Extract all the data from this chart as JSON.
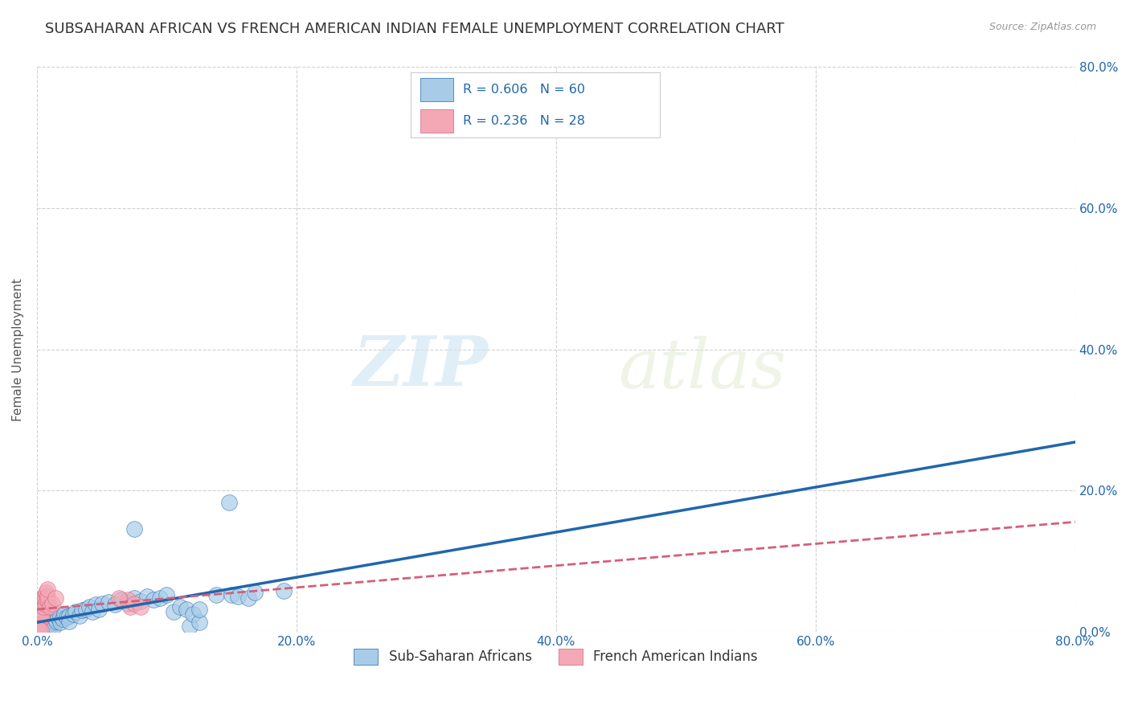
{
  "title": "SUBSAHARAN AFRICAN VS FRENCH AMERICAN INDIAN FEMALE UNEMPLOYMENT CORRELATION CHART",
  "source": "Source: ZipAtlas.com",
  "xlabel_blue": "Sub-Saharan Africans",
  "xlabel_pink": "French American Indians",
  "ylabel": "Female Unemployment",
  "xlim": [
    0.0,
    0.8
  ],
  "ylim": [
    0.0,
    0.8
  ],
  "xticks": [
    0.0,
    0.2,
    0.4,
    0.6,
    0.8
  ],
  "yticks": [
    0.0,
    0.2,
    0.4,
    0.6,
    0.8
  ],
  "tick_labels": [
    "0.0%",
    "20.0%",
    "40.0%",
    "60.0%",
    "80.0%"
  ],
  "blue_R": 0.606,
  "blue_N": 60,
  "pink_R": 0.236,
  "pink_N": 28,
  "blue_color": "#a8cce8",
  "pink_color": "#f4a7b5",
  "blue_line_color": "#2166ac",
  "pink_line_color": "#d4607a",
  "blue_scatter": [
    [
      0.002,
      0.005
    ],
    [
      0.003,
      0.008
    ],
    [
      0.004,
      0.003
    ],
    [
      0.005,
      0.01
    ],
    [
      0.005,
      0.005
    ],
    [
      0.006,
      0.008
    ],
    [
      0.007,
      0.012
    ],
    [
      0.008,
      0.01
    ],
    [
      0.008,
      0.005
    ],
    [
      0.009,
      0.012
    ],
    [
      0.01,
      0.008
    ],
    [
      0.01,
      0.015
    ],
    [
      0.012,
      0.01
    ],
    [
      0.013,
      0.013
    ],
    [
      0.013,
      0.008
    ],
    [
      0.014,
      0.018
    ],
    [
      0.015,
      0.015
    ],
    [
      0.016,
      0.02
    ],
    [
      0.018,
      0.013
    ],
    [
      0.018,
      0.022
    ],
    [
      0.02,
      0.018
    ],
    [
      0.021,
      0.025
    ],
    [
      0.023,
      0.02
    ],
    [
      0.025,
      0.022
    ],
    [
      0.025,
      0.015
    ],
    [
      0.028,
      0.025
    ],
    [
      0.03,
      0.028
    ],
    [
      0.033,
      0.022
    ],
    [
      0.035,
      0.03
    ],
    [
      0.038,
      0.032
    ],
    [
      0.04,
      0.035
    ],
    [
      0.043,
      0.028
    ],
    [
      0.045,
      0.038
    ],
    [
      0.048,
      0.032
    ],
    [
      0.05,
      0.04
    ],
    [
      0.055,
      0.042
    ],
    [
      0.06,
      0.038
    ],
    [
      0.065,
      0.045
    ],
    [
      0.07,
      0.04
    ],
    [
      0.075,
      0.048
    ],
    [
      0.08,
      0.043
    ],
    [
      0.085,
      0.05
    ],
    [
      0.09,
      0.045
    ],
    [
      0.095,
      0.048
    ],
    [
      0.1,
      0.052
    ],
    [
      0.075,
      0.145
    ],
    [
      0.105,
      0.028
    ],
    [
      0.11,
      0.035
    ],
    [
      0.115,
      0.032
    ],
    [
      0.118,
      0.008
    ],
    [
      0.12,
      0.025
    ],
    [
      0.125,
      0.013
    ],
    [
      0.125,
      0.032
    ],
    [
      0.138,
      0.052
    ],
    [
      0.15,
      0.052
    ],
    [
      0.155,
      0.05
    ],
    [
      0.163,
      0.048
    ],
    [
      0.168,
      0.055
    ],
    [
      0.148,
      0.183
    ],
    [
      0.19,
      0.058
    ]
  ],
  "pink_scatter": [
    [
      0.001,
      0.01
    ],
    [
      0.002,
      0.015
    ],
    [
      0.002,
      0.022
    ],
    [
      0.002,
      0.03
    ],
    [
      0.003,
      0.025
    ],
    [
      0.003,
      0.032
    ],
    [
      0.004,
      0.02
    ],
    [
      0.004,
      0.04
    ],
    [
      0.004,
      0.048
    ],
    [
      0.005,
      0.035
    ],
    [
      0.005,
      0.048
    ],
    [
      0.006,
      0.04
    ],
    [
      0.006,
      0.048
    ],
    [
      0.007,
      0.055
    ],
    [
      0.008,
      0.045
    ],
    [
      0.008,
      0.05
    ],
    [
      0.008,
      0.06
    ],
    [
      0.01,
      0.035
    ],
    [
      0.012,
      0.04
    ],
    [
      0.014,
      0.048
    ],
    [
      0.07,
      0.045
    ],
    [
      0.072,
      0.035
    ],
    [
      0.075,
      0.04
    ],
    [
      0.08,
      0.035
    ],
    [
      0.001,
      0.005
    ],
    [
      0.002,
      0.002
    ],
    [
      0.003,
      0.002
    ],
    [
      0.063,
      0.048
    ]
  ],
  "watermark_zip": "ZIP",
  "watermark_atlas": "atlas",
  "background_color": "#ffffff",
  "grid_color": "#cccccc",
  "title_fontsize": 13,
  "axis_label_fontsize": 11,
  "tick_fontsize": 11,
  "legend_fontsize": 12
}
